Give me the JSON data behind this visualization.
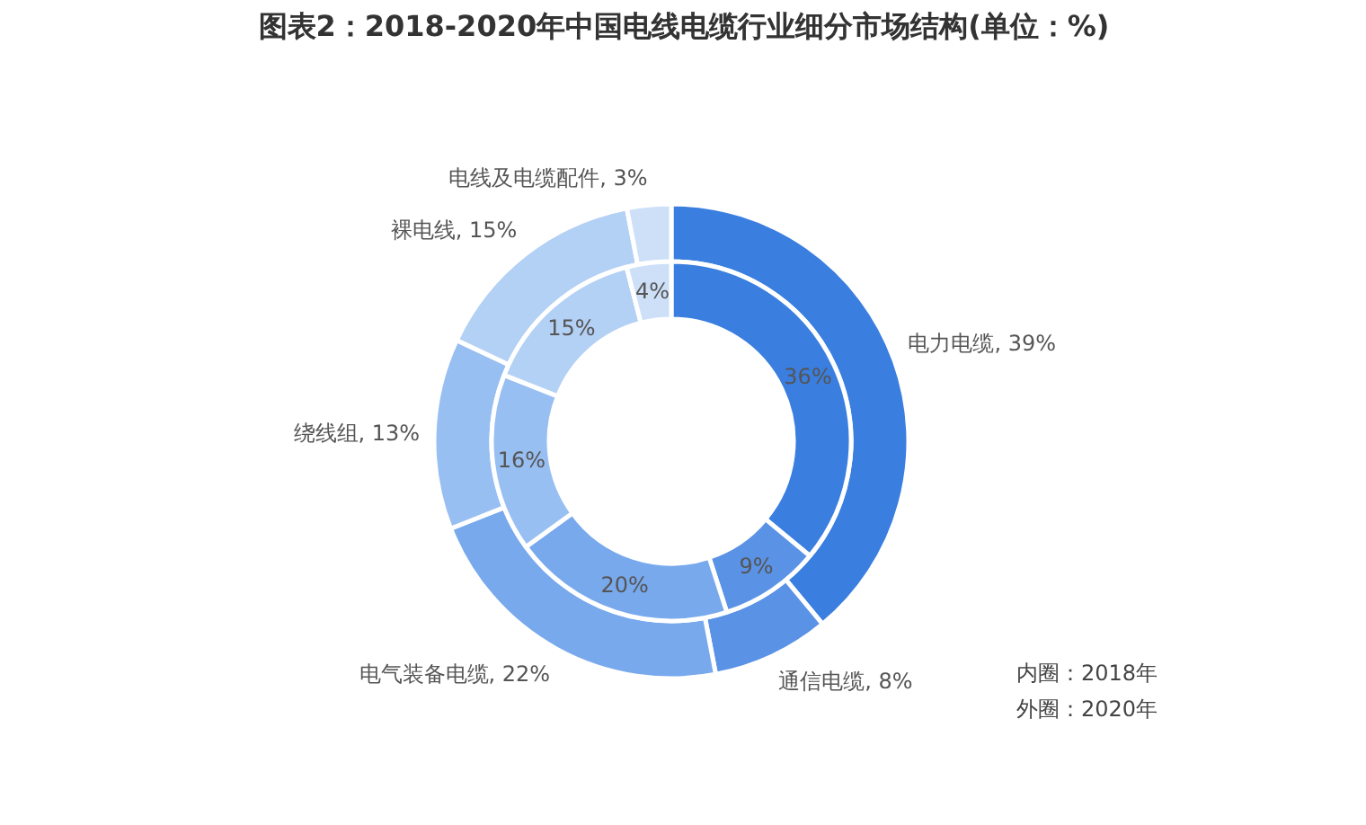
{
  "chart_data": {
    "type": "donut",
    "title": "图表2：2018-2020年中国电线电缆行业细分市场结构(单位：%)",
    "categories": [
      "电力电缆",
      "通信电缆",
      "电气装备电缆",
      "绕线组",
      "裸电线",
      "电线及电缆配件"
    ],
    "series": [
      {
        "values": [
          39,
          8,
          22,
          13,
          15,
          3
        ],
        "value_labels": [
          "39%",
          "8%",
          "22%",
          "13%",
          "15%",
          "3%"
        ],
        "colors": [
          "#3a7ee0",
          "#5a93e6",
          "#78a9ed",
          "#98bff2",
          "#b3d0f5",
          "#cde0f8"
        ]
      },
      {
        "values": [
          36,
          9,
          20,
          16,
          15,
          4
        ],
        "value_labels": [
          "36%",
          "9%",
          "20%",
          "16%",
          "15%",
          "4%"
        ],
        "colors": [
          "#3a7ee0",
          "#5a93e6",
          "#78a9ed",
          "#98bff2",
          "#b3d0f5",
          "#cde0f8"
        ]
      }
    ],
    "annotations": [
      "内圈：2018年",
      "外圈：2020年"
    ]
  }
}
